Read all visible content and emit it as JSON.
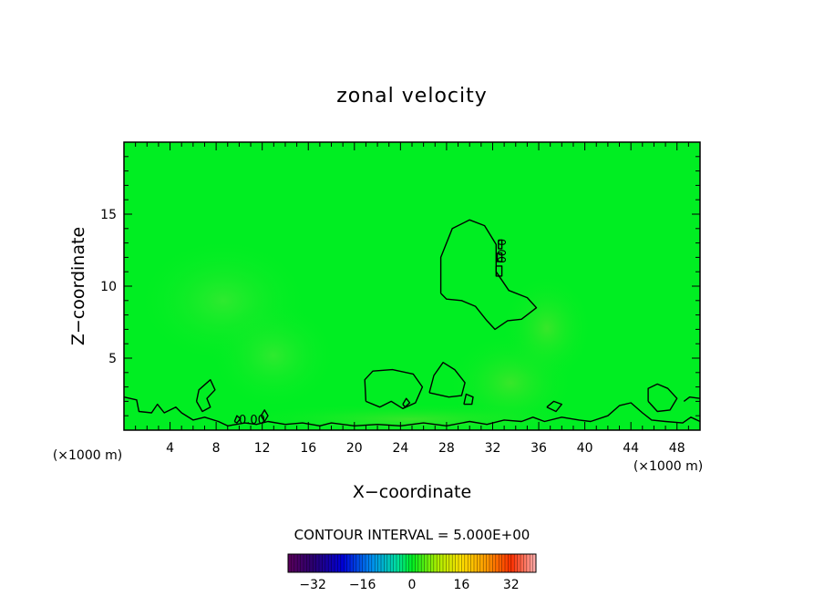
{
  "chart_data": {
    "type": "heatmap",
    "title": "zonal velocity",
    "xlabel": "X−coordinate",
    "ylabel": "Z−coordinate",
    "x_unit_label": "(×1000 m)",
    "x_unit_label_right": "(×1000 m)",
    "xlim": [
      0,
      50
    ],
    "ylim": [
      0,
      20
    ],
    "x_ticks": [
      4,
      8,
      12,
      16,
      20,
      24,
      28,
      32,
      36,
      40,
      44,
      48
    ],
    "y_ticks": [
      5,
      10,
      15
    ],
    "field_description_value": 0.0,
    "contour_labels": [
      "0.00",
      "0.00"
    ],
    "contour_interval_label": "CONTOUR INTERVAL = 5.000E+00",
    "colorbar": {
      "min": -40,
      "max": 40,
      "ticks": [
        -32,
        -16,
        0,
        16,
        32
      ],
      "tick_labels": [
        "−32",
        "−16",
        "0",
        "16",
        "32"
      ]
    },
    "contours": [
      {
        "level": 0.0,
        "points": [
          [
            27.5,
            9.5
          ],
          [
            27.5,
            12
          ],
          [
            28.5,
            14
          ],
          [
            30,
            14.6
          ],
          [
            31.3,
            14.2
          ],
          [
            32.3,
            12.9
          ],
          [
            32.3,
            11
          ],
          [
            33.4,
            9.7
          ],
          [
            35,
            9.2
          ],
          [
            35.8,
            8.5
          ],
          [
            34.5,
            7.7
          ],
          [
            33.3,
            7.6
          ],
          [
            32.2,
            7.0
          ],
          [
            31.5,
            7.6
          ],
          [
            30.5,
            8.6
          ],
          [
            29.3,
            9.0
          ],
          [
            28,
            9.1
          ],
          [
            27.5,
            9.5
          ]
        ]
      },
      {
        "level": 0.0,
        "points": [
          [
            32.5,
            13.2
          ],
          [
            32.8,
            13.2
          ],
          [
            32.8,
            12.6
          ],
          [
            32.5,
            12.6
          ],
          [
            32.5,
            13.2
          ]
        ]
      },
      {
        "level": 0.0,
        "points": [
          [
            32.4,
            12.3
          ],
          [
            32.8,
            12.3
          ],
          [
            32.8,
            11.7
          ],
          [
            32.4,
            11.7
          ],
          [
            32.4,
            12.3
          ]
        ]
      },
      {
        "level": 0.0,
        "points": [
          [
            32.3,
            11.4
          ],
          [
            32.8,
            11.4
          ],
          [
            32.8,
            10.7
          ],
          [
            32.3,
            10.7
          ],
          [
            32.3,
            11.4
          ]
        ]
      },
      {
        "level": 0.0,
        "points": [
          [
            21,
            2.0
          ],
          [
            20.9,
            3.5
          ],
          [
            21.6,
            4.1
          ],
          [
            23.3,
            4.2
          ],
          [
            25.1,
            3.9
          ],
          [
            25.9,
            3.0
          ],
          [
            25.3,
            1.9
          ],
          [
            24.2,
            1.5
          ],
          [
            23.2,
            2.0
          ],
          [
            22.2,
            1.6
          ],
          [
            21,
            2.0
          ]
        ]
      },
      {
        "level": 0.0,
        "points": [
          [
            26.5,
            2.6
          ],
          [
            26.9,
            3.8
          ],
          [
            27.7,
            4.7
          ],
          [
            28.7,
            4.2
          ],
          [
            29.6,
            3.3
          ],
          [
            29.3,
            2.4
          ],
          [
            28.2,
            2.3
          ],
          [
            26.5,
            2.6
          ]
        ]
      },
      {
        "level": 0.0,
        "points": [
          [
            29.5,
            1.8
          ],
          [
            29.7,
            2.5
          ],
          [
            30.3,
            2.3
          ],
          [
            30.2,
            1.8
          ],
          [
            29.5,
            1.8
          ]
        ]
      },
      {
        "level": 0.0,
        "points": [
          [
            24.2,
            1.8
          ],
          [
            24.5,
            2.2
          ],
          [
            24.8,
            1.9
          ],
          [
            24.4,
            1.6
          ],
          [
            24.2,
            1.8
          ]
        ]
      },
      {
        "level": 0.0,
        "points": [
          [
            45.5,
            2.0
          ],
          [
            45.5,
            2.9
          ],
          [
            46.3,
            3.2
          ],
          [
            47.2,
            2.9
          ],
          [
            48.0,
            2.2
          ],
          [
            47.4,
            1.4
          ],
          [
            46.3,
            1.3
          ],
          [
            45.5,
            2.0
          ]
        ]
      },
      {
        "level": 0.0,
        "points": [
          [
            48.6,
            2.0
          ],
          [
            49.1,
            2.3
          ],
          [
            50,
            2.2
          ]
        ]
      },
      {
        "level": 0.0,
        "points": [
          [
            6.3,
            2.0
          ],
          [
            6.5,
            2.8
          ],
          [
            7.5,
            3.5
          ],
          [
            7.9,
            2.8
          ],
          [
            7.2,
            2.2
          ],
          [
            7.5,
            1.6
          ],
          [
            6.8,
            1.3
          ],
          [
            6.3,
            2.0
          ]
        ]
      },
      {
        "level": 0.0,
        "points": [
          [
            9.6,
            0.6
          ],
          [
            9.8,
            1.0
          ],
          [
            10.1,
            0.8
          ],
          [
            9.8,
            0.5
          ],
          [
            9.6,
            0.6
          ]
        ]
      },
      {
        "level": 0.0,
        "points": [
          [
            11.9,
            1.0
          ],
          [
            12.2,
            1.4
          ],
          [
            12.5,
            1.0
          ],
          [
            12.2,
            0.6
          ],
          [
            11.9,
            1.0
          ]
        ]
      },
      {
        "level": 0.0,
        "points": [
          [
            36.7,
            1.6
          ],
          [
            37.3,
            2.0
          ],
          [
            38.0,
            1.8
          ],
          [
            37.5,
            1.3
          ],
          [
            36.7,
            1.6
          ]
        ]
      },
      {
        "level": 0.0,
        "points": [
          [
            0,
            2.3
          ],
          [
            1.1,
            2.1
          ],
          [
            1.3,
            1.3
          ],
          [
            2.4,
            1.2
          ],
          [
            2.9,
            1.8
          ],
          [
            3.5,
            1.2
          ],
          [
            4.5,
            1.6
          ],
          [
            5.0,
            1.2
          ],
          [
            6.0,
            0.7
          ],
          [
            7.0,
            0.9
          ],
          [
            8.2,
            0.6
          ],
          [
            9.0,
            0.3
          ],
          [
            10.5,
            0.5
          ],
          [
            11.5,
            0.4
          ],
          [
            12.5,
            0.6
          ],
          [
            14.0,
            0.4
          ],
          [
            15.5,
            0.5
          ],
          [
            17.0,
            0.3
          ],
          [
            18.0,
            0.5
          ],
          [
            20.0,
            0.3
          ],
          [
            22.0,
            0.4
          ],
          [
            24.0,
            0.3
          ],
          [
            26.0,
            0.5
          ],
          [
            28.0,
            0.3
          ],
          [
            30.0,
            0.6
          ],
          [
            31.5,
            0.4
          ],
          [
            33.0,
            0.7
          ],
          [
            34.5,
            0.6
          ],
          [
            35.5,
            0.9
          ],
          [
            36.5,
            0.6
          ],
          [
            38.0,
            0.9
          ],
          [
            39.5,
            0.7
          ],
          [
            40.5,
            0.6
          ],
          [
            42.0,
            1.0
          ],
          [
            43.0,
            1.7
          ],
          [
            44.0,
            1.9
          ],
          [
            45.0,
            1.2
          ],
          [
            45.8,
            0.7
          ],
          [
            47.0,
            0.6
          ],
          [
            48.5,
            0.5
          ],
          [
            49.2,
            0.9
          ],
          [
            50,
            0.6
          ]
        ]
      }
    ]
  }
}
